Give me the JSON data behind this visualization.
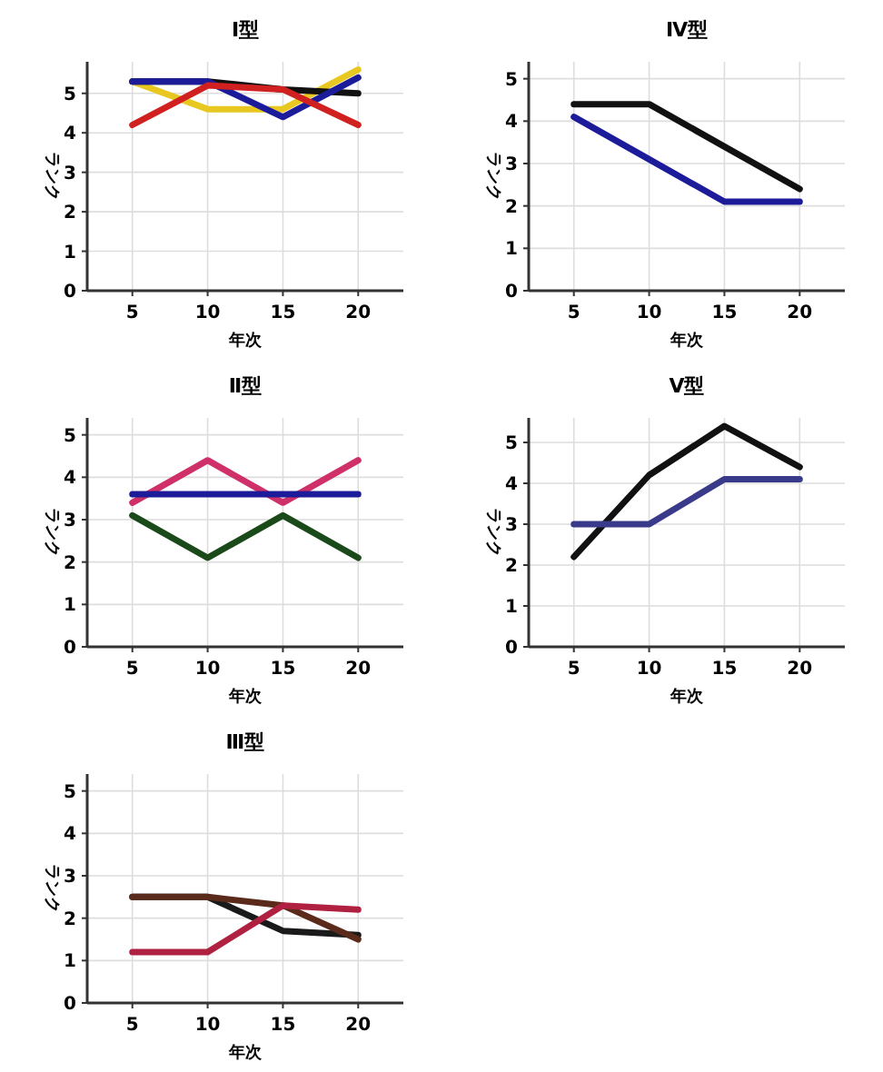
{
  "chart_data": [
    {
      "type": "line",
      "title": "Ⅰ型",
      "xlabel": "年次",
      "ylabel": "ランク",
      "x": [
        5,
        10,
        15,
        20
      ],
      "xlim": [
        2,
        23
      ],
      "xticks": [
        5,
        10,
        15,
        20
      ],
      "ylim": [
        0,
        5.8
      ],
      "yticks": [
        0,
        1,
        2,
        3,
        4,
        5
      ],
      "grid": true,
      "series": [
        {
          "color": "#e8c820",
          "values": [
            5.3,
            4.6,
            4.6,
            5.6
          ]
        },
        {
          "color": "#111111",
          "values": [
            5.3,
            5.3,
            5.1,
            5.0
          ]
        },
        {
          "color": "#1c1c9a",
          "values": [
            5.3,
            5.3,
            4.4,
            5.4
          ]
        },
        {
          "color": "#d02020",
          "values": [
            4.2,
            5.2,
            5.1,
            4.2
          ]
        }
      ]
    },
    {
      "type": "line",
      "title": "Ⅳ型",
      "xlabel": "年次",
      "ylabel": "ランク",
      "x": [
        5,
        10,
        15,
        20
      ],
      "xlim": [
        2,
        23
      ],
      "xticks": [
        5,
        10,
        15,
        20
      ],
      "ylim": [
        0,
        5.4
      ],
      "yticks": [
        0,
        1,
        2,
        3,
        4,
        5
      ],
      "grid": true,
      "series": [
        {
          "color": "#111111",
          "values": [
            4.4,
            4.4,
            3.4,
            2.4
          ]
        },
        {
          "color": "#1c1c9a",
          "values": [
            4.1,
            3.1,
            2.1,
            2.1
          ]
        }
      ]
    },
    {
      "type": "line",
      "title": "Ⅱ型",
      "xlabel": "年次",
      "ylabel": "ランク",
      "x": [
        5,
        10,
        15,
        20
      ],
      "xlim": [
        2,
        23
      ],
      "xticks": [
        5,
        10,
        15,
        20
      ],
      "ylim": [
        0,
        5.4
      ],
      "yticks": [
        0,
        1,
        2,
        3,
        4,
        5
      ],
      "grid": true,
      "series": [
        {
          "color": "#d0306a",
          "values": [
            3.4,
            4.4,
            3.4,
            4.4
          ]
        },
        {
          "color": "#1c1c9a",
          "values": [
            3.6,
            3.6,
            3.6,
            3.6
          ]
        },
        {
          "color": "#1a4a1a",
          "values": [
            3.1,
            2.1,
            3.1,
            2.1
          ]
        }
      ]
    },
    {
      "type": "line",
      "title": "Ⅴ型",
      "xlabel": "年次",
      "ylabel": "ランク",
      "x": [
        5,
        10,
        15,
        20
      ],
      "xlim": [
        2,
        23
      ],
      "xticks": [
        5,
        10,
        15,
        20
      ],
      "ylim": [
        0,
        5.6
      ],
      "yticks": [
        0,
        1,
        2,
        3,
        4,
        5
      ],
      "grid": true,
      "series": [
        {
          "color": "#111111",
          "values": [
            2.2,
            4.2,
            5.4,
            4.4
          ]
        },
        {
          "color": "#3a3a8a",
          "values": [
            3.0,
            3.0,
            4.1,
            4.1
          ]
        }
      ]
    },
    {
      "type": "line",
      "title": "Ⅲ型",
      "xlabel": "年次",
      "ylabel": "ランク",
      "x": [
        5,
        10,
        15,
        20
      ],
      "xlim": [
        2,
        23
      ],
      "xticks": [
        5,
        10,
        15,
        20
      ],
      "ylim": [
        0,
        5.4
      ],
      "yticks": [
        0,
        1,
        2,
        3,
        4,
        5
      ],
      "grid": true,
      "series": [
        {
          "color": "#1a1a1a",
          "values": [
            2.5,
            2.5,
            1.7,
            1.6
          ]
        },
        {
          "color": "#5a2a1a",
          "values": [
            2.5,
            2.5,
            2.3,
            1.5
          ]
        },
        {
          "color": "#b02040",
          "values": [
            1.2,
            1.2,
            2.3,
            2.2
          ]
        }
      ]
    }
  ]
}
